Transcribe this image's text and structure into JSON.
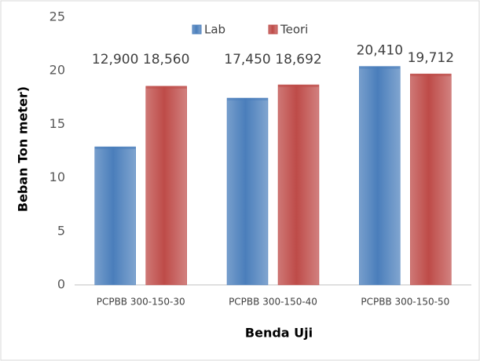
{
  "chart_data": {
    "type": "bar",
    "categories": [
      "PCPBB 300-150-30",
      "PCPBB 300-150-40",
      "PCPBB 300-150-50"
    ],
    "series": [
      {
        "name": "Lab",
        "color": "#4a7ebb",
        "values": [
          12.9,
          17.45,
          20.41
        ],
        "value_labels": [
          "12,900",
          "17,450",
          "20,410"
        ]
      },
      {
        "name": "Teori",
        "color": "#be4b48",
        "values": [
          18.56,
          18.692,
          19.712
        ],
        "value_labels": [
          "18,560",
          "18,692",
          "19,712"
        ]
      }
    ],
    "x_label": "Benda Uji",
    "y_label": "Beban Ton meter)",
    "ylim": [
      0,
      25
    ],
    "yticks": [
      0,
      5,
      10,
      15,
      20,
      25
    ],
    "grid": false,
    "legend": "top"
  }
}
